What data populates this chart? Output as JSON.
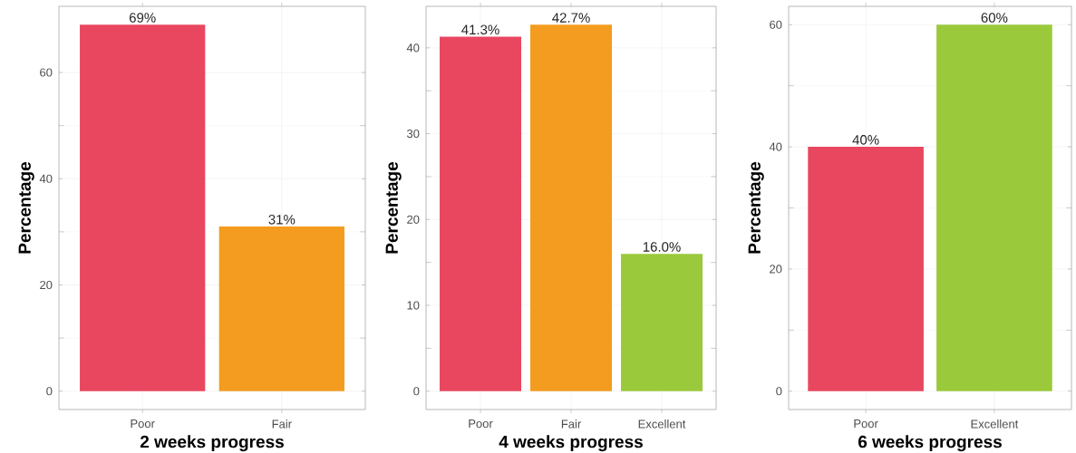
{
  "chart_data": [
    {
      "type": "bar",
      "xlabel": "2 weeks progress",
      "ylabel": "Percentage",
      "categories": [
        "Poor",
        "Fair"
      ],
      "values": [
        69,
        31
      ],
      "colors": [
        "#e8475f",
        "#f39c1f"
      ],
      "value_labels": [
        "69%",
        "31%"
      ],
      "ylim": [
        -3.45,
        72.45
      ],
      "yticks": [
        0,
        20,
        40,
        60
      ],
      "grid": true
    },
    {
      "type": "bar",
      "xlabel": "4 weeks progress",
      "ylabel": "Percentage",
      "categories": [
        "Poor",
        "Fair",
        "Excellent"
      ],
      "values": [
        41.3,
        42.7,
        16.0
      ],
      "colors": [
        "#e8475f",
        "#f39c1f",
        "#9bc93c"
      ],
      "value_labels": [
        "41.3%",
        "42.7%",
        "16.0%"
      ],
      "ylim": [
        -2.135,
        44.835
      ],
      "yticks": [
        0,
        10,
        20,
        30,
        40
      ],
      "grid": true
    },
    {
      "type": "bar",
      "xlabel": "6 weeks progress",
      "ylabel": "Percentage",
      "categories": [
        "Poor",
        "Excellent"
      ],
      "values": [
        40,
        60
      ],
      "colors": [
        "#e8475f",
        "#9bc93c"
      ],
      "value_labels": [
        "40%",
        "60%"
      ],
      "ylim": [
        -3,
        63
      ],
      "yticks": [
        0,
        20,
        40,
        60
      ],
      "grid": true
    }
  ]
}
